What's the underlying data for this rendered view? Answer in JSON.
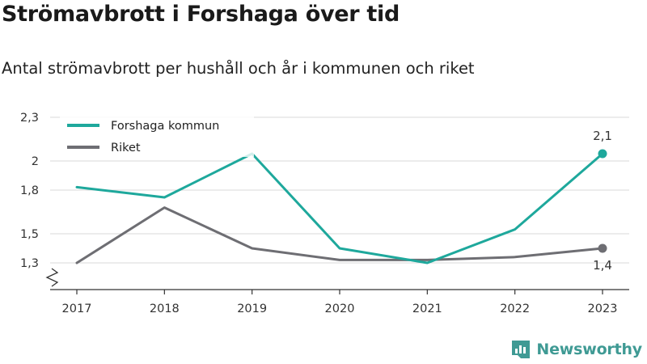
{
  "header": {
    "title": "Strömavbrott i Forshaga över tid",
    "subtitle": "Antal strömavbrott per hushåll och år i kommunen och riket"
  },
  "brand": {
    "name": "Newsworthy",
    "icon": "newsworthy-logo-icon",
    "color": "#3f9a94"
  },
  "chart_data": {
    "type": "line",
    "categories": [
      "2017",
      "2018",
      "2019",
      "2020",
      "2021",
      "2022",
      "2023"
    ],
    "y_ticks": [
      {
        "value": 1.3,
        "label": "1,3"
      },
      {
        "value": 1.5,
        "label": "1,5"
      },
      {
        "value": 1.8,
        "label": "1,8"
      },
      {
        "value": 2.0,
        "label": "2"
      },
      {
        "value": 2.3,
        "label": "2,3"
      }
    ],
    "ylim": [
      1.3,
      2.3
    ],
    "axis_break": true,
    "grid": true,
    "legend_position": "top-left",
    "series": [
      {
        "name": "Forshaga kommun",
        "color": "#1ea89c",
        "values": [
          1.82,
          1.75,
          2.05,
          1.4,
          1.3,
          1.53,
          2.05
        ],
        "end_label": "2,1"
      },
      {
        "name": "Riket",
        "color": "#6e6e73",
        "values": [
          1.3,
          1.68,
          1.4,
          1.32,
          1.32,
          1.34,
          1.4
        ],
        "end_label": "1,4"
      }
    ]
  }
}
